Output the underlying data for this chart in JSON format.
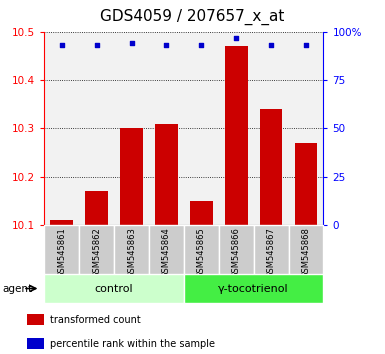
{
  "title": "GDS4059 / 207657_x_at",
  "samples": [
    "GSM545861",
    "GSM545862",
    "GSM545863",
    "GSM545864",
    "GSM545865",
    "GSM545866",
    "GSM545867",
    "GSM545868"
  ],
  "bar_values": [
    10.11,
    10.17,
    10.3,
    10.31,
    10.15,
    10.47,
    10.34,
    10.27
  ],
  "percentile_values": [
    93,
    93,
    94,
    93,
    93,
    97,
    93,
    93
  ],
  "ylim_left": [
    10.1,
    10.5
  ],
  "ylim_right": [
    0,
    100
  ],
  "yticks_left": [
    10.1,
    10.2,
    10.3,
    10.4,
    10.5
  ],
  "yticks_right": [
    0,
    25,
    50,
    75,
    100
  ],
  "bar_color": "#cc0000",
  "percentile_color": "#0000cc",
  "bar_width": 0.65,
  "groups": [
    {
      "label": "control",
      "indices": [
        0,
        1,
        2,
        3
      ],
      "color": "#ccffcc"
    },
    {
      "label": "γ-tocotrienol",
      "indices": [
        4,
        5,
        6,
        7
      ],
      "color": "#44ee44"
    }
  ],
  "agent_label": "agent",
  "legend_bar_label": "transformed count",
  "legend_pct_label": "percentile rank within the sample",
  "title_fontsize": 11,
  "tick_fontsize": 7.5,
  "sample_fontsize": 6,
  "group_fontsize": 8,
  "legend_fontsize": 7,
  "plot_bg": "#f2f2f2",
  "sample_bg": "#cccccc",
  "sample_border": "#aaaaaa"
}
